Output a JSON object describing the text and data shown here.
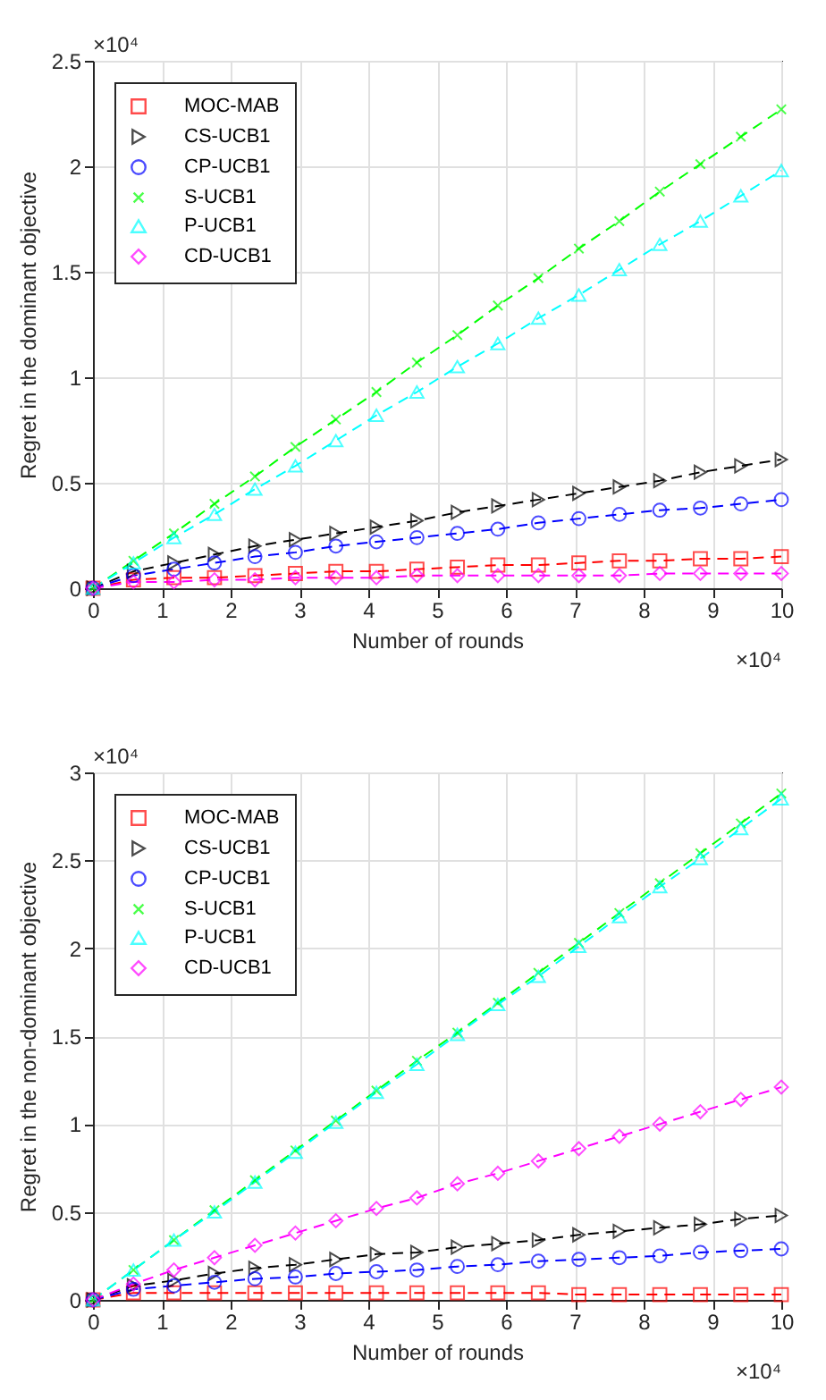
{
  "chart_data": [
    {
      "type": "line",
      "xlabel": "Number of rounds",
      "ylabel": "Regret in the dominant objective",
      "annotations": [
        "×10⁴",
        "×10⁴"
      ],
      "x": [
        0,
        0.588,
        1.176,
        1.765,
        2.353,
        2.941,
        3.529,
        4.118,
        4.706,
        5.294,
        5.882,
        6.471,
        7.059,
        7.647,
        8.235,
        8.824,
        9.412,
        10
      ],
      "series": [
        {
          "name": "MOC-MAB",
          "color": "#ff0000",
          "marker": "square",
          "values": [
            0,
            0.04,
            0.05,
            0.05,
            0.06,
            0.07,
            0.08,
            0.08,
            0.09,
            0.1,
            0.11,
            0.11,
            0.12,
            0.13,
            0.13,
            0.14,
            0.14,
            0.15
          ]
        },
        {
          "name": "CS-UCB1",
          "color": "#000000",
          "marker": "triangle-right",
          "values": [
            0,
            0.08,
            0.12,
            0.16,
            0.2,
            0.23,
            0.26,
            0.29,
            0.32,
            0.36,
            0.39,
            0.42,
            0.45,
            0.48,
            0.51,
            0.55,
            0.58,
            0.61
          ]
        },
        {
          "name": "CP-UCB1",
          "color": "#0000ff",
          "marker": "circle",
          "values": [
            0,
            0.06,
            0.09,
            0.12,
            0.15,
            0.17,
            0.2,
            0.22,
            0.24,
            0.26,
            0.28,
            0.31,
            0.33,
            0.35,
            0.37,
            0.38,
            0.4,
            0.42
          ]
        },
        {
          "name": "S-UCB1",
          "color": "#00ff00",
          "marker": "cross",
          "values": [
            0,
            0.13,
            0.26,
            0.4,
            0.53,
            0.67,
            0.8,
            0.93,
            1.07,
            1.2,
            1.34,
            1.47,
            1.61,
            1.74,
            1.88,
            2.01,
            2.14,
            2.27
          ]
        },
        {
          "name": "P-UCB1",
          "color": "#00ffff",
          "marker": "triangle",
          "values": [
            0,
            0.12,
            0.24,
            0.35,
            0.47,
            0.58,
            0.7,
            0.82,
            0.93,
            1.05,
            1.16,
            1.28,
            1.39,
            1.51,
            1.63,
            1.74,
            1.86,
            1.98
          ]
        },
        {
          "name": "CD-UCB1",
          "color": "#ff00ff",
          "marker": "diamond",
          "values": [
            0,
            0.03,
            0.03,
            0.04,
            0.04,
            0.05,
            0.05,
            0.05,
            0.06,
            0.06,
            0.06,
            0.06,
            0.06,
            0.06,
            0.07,
            0.07,
            0.07,
            0.07
          ]
        }
      ],
      "xlim": [
        0,
        10
      ],
      "xticks": [
        0,
        1,
        2,
        3,
        4,
        5,
        6,
        7,
        8,
        9,
        10
      ],
      "ylim": [
        0,
        2.5
      ],
      "yticks": [
        0,
        0.5,
        1,
        1.5,
        2,
        2.5
      ],
      "grid": true,
      "legend": "top left",
      "line_style": "dashed"
    },
    {
      "type": "line",
      "xlabel": "Number of rounds",
      "ylabel": "Regret in the non-dominant objective",
      "annotations": [
        "×10⁴",
        "×10⁴"
      ],
      "x": [
        0,
        0.588,
        1.176,
        1.765,
        2.353,
        2.941,
        3.529,
        4.118,
        4.706,
        5.294,
        5.882,
        6.471,
        7.059,
        7.647,
        8.235,
        8.824,
        9.412,
        10
      ],
      "series": [
        {
          "name": "MOC-MAB",
          "color": "#ff0000",
          "marker": "square",
          "values": [
            0,
            0.04,
            0.04,
            0.04,
            0.04,
            0.04,
            0.04,
            0.04,
            0.04,
            0.04,
            0.04,
            0.04,
            0.03,
            0.03,
            0.03,
            0.03,
            0.03,
            0.03
          ]
        },
        {
          "name": "CS-UCB1",
          "color": "#000000",
          "marker": "triangle-right",
          "values": [
            0,
            0.08,
            0.11,
            0.15,
            0.18,
            0.2,
            0.23,
            0.26,
            0.27,
            0.3,
            0.32,
            0.34,
            0.37,
            0.39,
            0.41,
            0.43,
            0.46,
            0.48
          ]
        },
        {
          "name": "CP-UCB1",
          "color": "#0000ff",
          "marker": "circle",
          "values": [
            0,
            0.06,
            0.08,
            0.1,
            0.12,
            0.13,
            0.15,
            0.16,
            0.17,
            0.19,
            0.2,
            0.22,
            0.23,
            0.24,
            0.25,
            0.27,
            0.28,
            0.29
          ]
        },
        {
          "name": "S-UCB1",
          "color": "#00ff00",
          "marker": "cross",
          "values": [
            0,
            0.17,
            0.34,
            0.51,
            0.68,
            0.85,
            1.02,
            1.19,
            1.36,
            1.52,
            1.69,
            1.86,
            2.03,
            2.2,
            2.37,
            2.54,
            2.71,
            2.88
          ]
        },
        {
          "name": "P-UCB1",
          "color": "#00ffff",
          "marker": "triangle",
          "values": [
            0,
            0.17,
            0.34,
            0.5,
            0.67,
            0.84,
            1.01,
            1.18,
            1.34,
            1.51,
            1.68,
            1.84,
            2.01,
            2.18,
            2.35,
            2.51,
            2.68,
            2.85
          ]
        },
        {
          "name": "CD-UCB1",
          "color": "#ff00ff",
          "marker": "diamond",
          "values": [
            0,
            0.09,
            0.17,
            0.24,
            0.31,
            0.38,
            0.45,
            0.52,
            0.58,
            0.66,
            0.72,
            0.79,
            0.86,
            0.93,
            1.0,
            1.07,
            1.14,
            1.21
          ]
        }
      ],
      "xlim": [
        0,
        10
      ],
      "xticks": [
        0,
        1,
        2,
        3,
        4,
        5,
        6,
        7,
        8,
        9,
        10
      ],
      "ylim": [
        0,
        3
      ],
      "yticks": [
        0,
        0.5,
        1,
        1.5,
        2,
        2.5,
        3
      ],
      "grid": true,
      "legend": "top left",
      "line_style": "dashed"
    }
  ]
}
